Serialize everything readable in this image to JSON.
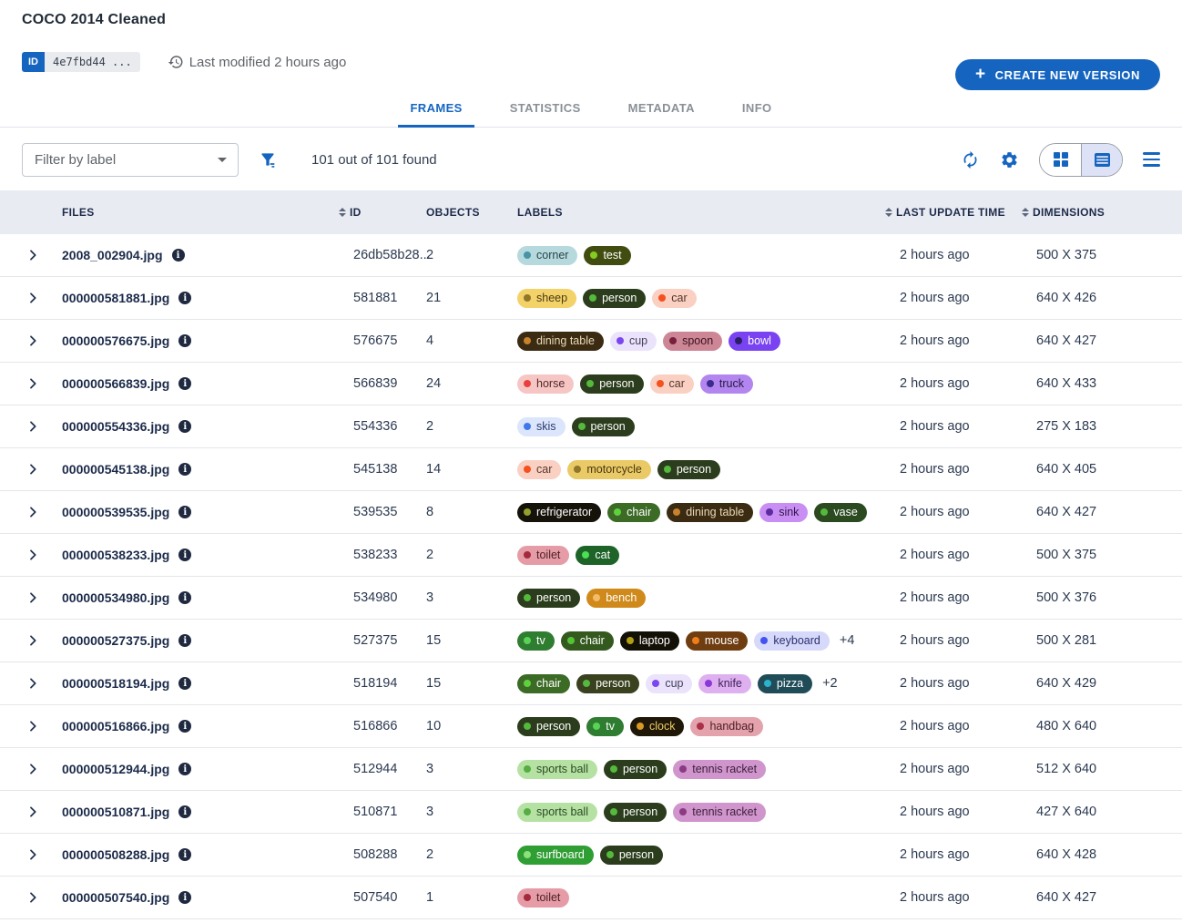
{
  "header": {
    "title": "COCO 2014 Cleaned",
    "id_label": "ID",
    "id_value": "4e7fbd44 ...",
    "last_modified": "Last modified 2 hours ago",
    "create_button": "CREATE NEW VERSION",
    "plus": "+"
  },
  "tabs": [
    {
      "label": "FRAMES",
      "active": true
    },
    {
      "label": "STATISTICS",
      "active": false
    },
    {
      "label": "METADATA",
      "active": false
    },
    {
      "label": "INFO",
      "active": false
    }
  ],
  "toolbar": {
    "filter_placeholder": "Filter by label",
    "results": "101 out of 101 found"
  },
  "icons": {
    "history": "history-clock",
    "filter": "funnel",
    "refresh": "autorenew",
    "settings": "gear",
    "grid_view": "2x2-squares",
    "list_view": "rows",
    "menu": "hamburger",
    "expand": "chevron-right",
    "info": "circled-i"
  },
  "colors": {
    "primary": "#1565c0",
    "header_bg": "#e9ebf3",
    "toggle_selected_bg": "#dde2f7"
  },
  "table": {
    "columns": [
      {
        "label": "FILES",
        "sortable": false
      },
      {
        "label": "ID",
        "sortable": true
      },
      {
        "label": "OBJECTS",
        "sortable": false
      },
      {
        "label": "LABELS",
        "sortable": false
      },
      {
        "label": "LAST UPDATE TIME",
        "sortable": true
      },
      {
        "label": "DIMENSIONS",
        "sortable": true
      }
    ],
    "rows": [
      {
        "file": "2008_002904.jpg",
        "id": "26db58b28...",
        "objects": "2",
        "labels": [
          {
            "t": "corner",
            "bg": "#b5d9dd",
            "dot": "#4694a6",
            "fg": "#29454c"
          },
          {
            "t": "test",
            "bg": "#414d10",
            "dot": "#84cc1f",
            "fg": "#ffffff"
          }
        ],
        "time": "2 hours ago",
        "dims": "500 X 375"
      },
      {
        "file": "000000581881.jpg",
        "id": "581881",
        "objects": "21",
        "labels": [
          {
            "t": "sheep",
            "bg": "#f3d269",
            "dot": "#8f762a",
            "fg": "#4a3c14"
          },
          {
            "t": "person",
            "bg": "#2b3d1c",
            "dot": "#54b93c",
            "fg": "#ffffff"
          },
          {
            "t": "car",
            "bg": "#f9d0c2",
            "dot": "#f4511e",
            "fg": "#54372b"
          }
        ],
        "time": "2 hours ago",
        "dims": "640 X 426"
      },
      {
        "file": "000000576675.jpg",
        "id": "576675",
        "objects": "4",
        "labels": [
          {
            "t": "dining table",
            "bg": "#3b2b13",
            "dot": "#c8812c",
            "fg": "#ead9b5"
          },
          {
            "t": "cup",
            "bg": "#eae3fb",
            "dot": "#7b46f0",
            "fg": "#45405c"
          },
          {
            "t": "spoon",
            "bg": "#cd8695",
            "dot": "#77203d",
            "fg": "#3c1320"
          },
          {
            "t": "bowl",
            "bg": "#7a43f2",
            "dot": "#2a1f64",
            "fg": "#ffffff"
          }
        ],
        "time": "2 hours ago",
        "dims": "640 X 427"
      },
      {
        "file": "000000566839.jpg",
        "id": "566839",
        "objects": "24",
        "labels": [
          {
            "t": "horse",
            "bg": "#f6c6c4",
            "dot": "#e8403c",
            "fg": "#542724"
          },
          {
            "t": "person",
            "bg": "#2b3d1c",
            "dot": "#54b93c",
            "fg": "#ffffff"
          },
          {
            "t": "car",
            "bg": "#f9d0c2",
            "dot": "#f4511e",
            "fg": "#54372b"
          },
          {
            "t": "truck",
            "bg": "#b285ef",
            "dot": "#3b2b8f",
            "fg": "#271a44"
          }
        ],
        "time": "2 hours ago",
        "dims": "640 X 433"
      },
      {
        "file": "000000554336.jpg",
        "id": "554336",
        "objects": "2",
        "labels": [
          {
            "t": "skis",
            "bg": "#dbe5fb",
            "dot": "#4078ec",
            "fg": "#2c3a6e"
          },
          {
            "t": "person",
            "bg": "#2b3d1c",
            "dot": "#54b93c",
            "fg": "#ffffff"
          }
        ],
        "time": "2 hours ago",
        "dims": "275 X 183"
      },
      {
        "file": "000000545138.jpg",
        "id": "545138",
        "objects": "14",
        "labels": [
          {
            "t": "car",
            "bg": "#f9d0c2",
            "dot": "#f4511e",
            "fg": "#54372b"
          },
          {
            "t": "motorcycle",
            "bg": "#eac967",
            "dot": "#8f762a",
            "fg": "#47380f"
          },
          {
            "t": "person",
            "bg": "#2b3d1c",
            "dot": "#54b93c",
            "fg": "#ffffff"
          }
        ],
        "time": "2 hours ago",
        "dims": "640 X 405"
      },
      {
        "file": "000000539535.jpg",
        "id": "539535",
        "objects": "8",
        "labels": [
          {
            "t": "refrigerator",
            "bg": "#15120a",
            "dot": "#93a12b",
            "fg": "#ffffff"
          },
          {
            "t": "chair",
            "bg": "#3c6b26",
            "dot": "#5fd13f",
            "fg": "#ffffff"
          },
          {
            "t": "dining table",
            "bg": "#3b2b13",
            "dot": "#c8812c",
            "fg": "#ead9b5"
          },
          {
            "t": "sink",
            "bg": "#c98ef4",
            "dot": "#5c2c9e",
            "fg": "#2f1748"
          },
          {
            "t": "vase",
            "bg": "#2b4a20",
            "dot": "#55b83e",
            "fg": "#ffffff"
          }
        ],
        "time": "2 hours ago",
        "dims": "640 X 427"
      },
      {
        "file": "000000538233.jpg",
        "id": "538233",
        "objects": "2",
        "labels": [
          {
            "t": "toilet",
            "bg": "#e59ca6",
            "dot": "#a3293d",
            "fg": "#4e2026"
          },
          {
            "t": "cat",
            "bg": "#1e6328",
            "dot": "#4ae052",
            "fg": "#ffffff"
          }
        ],
        "time": "2 hours ago",
        "dims": "500 X 375"
      },
      {
        "file": "000000534980.jpg",
        "id": "534980",
        "objects": "3",
        "labels": [
          {
            "t": "person",
            "bg": "#2b3d1c",
            "dot": "#54b93c",
            "fg": "#ffffff"
          },
          {
            "t": "bench",
            "bg": "#d08a1b",
            "dot": "#f2bc6a",
            "fg": "#ffffff"
          }
        ],
        "time": "2 hours ago",
        "dims": "500 X 376"
      },
      {
        "file": "000000527375.jpg",
        "id": "527375",
        "objects": "15",
        "labels": [
          {
            "t": "tv",
            "bg": "#2f7d31",
            "dot": "#58d355",
            "fg": "#ffffff"
          },
          {
            "t": "chair",
            "bg": "#34591f",
            "dot": "#54c437",
            "fg": "#ffffff"
          },
          {
            "t": "laptop",
            "bg": "#131006",
            "dot": "#b1a112",
            "fg": "#ffffff"
          },
          {
            "t": "mouse",
            "bg": "#6f3d10",
            "dot": "#ef7e18",
            "fg": "#ffffff"
          },
          {
            "t": "keyboard",
            "bg": "#d6d9fa",
            "dot": "#4253f0",
            "fg": "#2b3170"
          }
        ],
        "more": "+4",
        "time": "2 hours ago",
        "dims": "500 X 281"
      },
      {
        "file": "000000518194.jpg",
        "id": "518194",
        "objects": "15",
        "labels": [
          {
            "t": "chair",
            "bg": "#3c6b26",
            "dot": "#5fd13f",
            "fg": "#ffffff"
          },
          {
            "t": "person",
            "bg": "#39411f",
            "dot": "#54b93c",
            "fg": "#ffffff"
          },
          {
            "t": "cup",
            "bg": "#eae3fb",
            "dot": "#7b46f0",
            "fg": "#45405c"
          },
          {
            "t": "knife",
            "bg": "#deb0f0",
            "dot": "#8c38d8",
            "fg": "#3e2158"
          },
          {
            "t": "pizza",
            "bg": "#204c58",
            "dot": "#2ab3cb",
            "fg": "#ffffff"
          }
        ],
        "more": "+2",
        "time": "2 hours ago",
        "dims": "640 X 429"
      },
      {
        "file": "000000516866.jpg",
        "id": "516866",
        "objects": "10",
        "labels": [
          {
            "t": "person",
            "bg": "#2b3d1c",
            "dot": "#54b93c",
            "fg": "#ffffff"
          },
          {
            "t": "tv",
            "bg": "#2f7d31",
            "dot": "#58d355",
            "fg": "#ffffff"
          },
          {
            "t": "clock",
            "bg": "#1f1808",
            "dot": "#d89a25",
            "fg": "#f0cb66"
          },
          {
            "t": "handbag",
            "bg": "#e3a2ac",
            "dot": "#aa3147",
            "fg": "#4e2027"
          }
        ],
        "time": "2 hours ago",
        "dims": "480 X 640"
      },
      {
        "file": "000000512944.jpg",
        "id": "512944",
        "objects": "3",
        "labels": [
          {
            "t": "sports ball",
            "bg": "#b5e2a3",
            "dot": "#56ad43",
            "fg": "#2c4a24"
          },
          {
            "t": "person",
            "bg": "#2b3d1c",
            "dot": "#54b93c",
            "fg": "#ffffff"
          },
          {
            "t": "tennis racket",
            "bg": "#d095cc",
            "dot": "#8b3a83",
            "fg": "#3c1f39"
          }
        ],
        "time": "2 hours ago",
        "dims": "512 X 640"
      },
      {
        "file": "000000510871.jpg",
        "id": "510871",
        "objects": "3",
        "labels": [
          {
            "t": "sports ball",
            "bg": "#b5e2a3",
            "dot": "#56ad43",
            "fg": "#2c4a24"
          },
          {
            "t": "person",
            "bg": "#2b3d1c",
            "dot": "#54b93c",
            "fg": "#ffffff"
          },
          {
            "t": "tennis racket",
            "bg": "#d095cc",
            "dot": "#8b3a83",
            "fg": "#3c1f39"
          }
        ],
        "time": "2 hours ago",
        "dims": "427 X 640"
      },
      {
        "file": "000000508288.jpg",
        "id": "508288",
        "objects": "2",
        "labels": [
          {
            "t": "surfboard",
            "bg": "#2f9e33",
            "dot": "#8ce17d",
            "fg": "#ffffff"
          },
          {
            "t": "person",
            "bg": "#2b3d1c",
            "dot": "#54b93c",
            "fg": "#ffffff"
          }
        ],
        "time": "2 hours ago",
        "dims": "640 X 428"
      },
      {
        "file": "000000507540.jpg",
        "id": "507540",
        "objects": "1",
        "labels": [
          {
            "t": "toilet",
            "bg": "#e59ca6",
            "dot": "#a3293d",
            "fg": "#4e2026"
          }
        ],
        "time": "2 hours ago",
        "dims": "640 X 427"
      }
    ]
  }
}
